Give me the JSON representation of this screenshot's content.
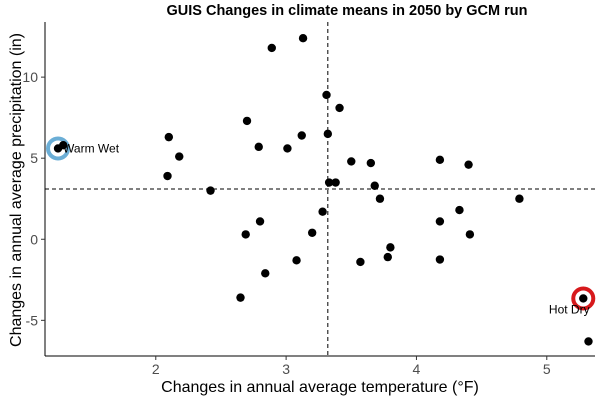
{
  "chart_data": {
    "type": "scatter",
    "title": "GUIS Changes in climate means in 2050 by GCM run",
    "xlabel": "Changes in annual average temperature (°F)",
    "ylabel": "Changes in annual average precipitation (in)",
    "xlim": [
      1.15,
      5.37
    ],
    "ylim": [
      -7.2,
      13.4
    ],
    "xticks": [
      2,
      3,
      4,
      5
    ],
    "yticks": [
      -5,
      0,
      5,
      10
    ],
    "grid": false,
    "reference_lines": {
      "x": 3.32,
      "y": 3.1
    },
    "points": [
      {
        "x": 1.25,
        "y": 5.6
      },
      {
        "x": 1.29,
        "y": 5.8
      },
      {
        "x": 2.1,
        "y": 6.3
      },
      {
        "x": 2.18,
        "y": 5.1
      },
      {
        "x": 2.09,
        "y": 3.9
      },
      {
        "x": 2.42,
        "y": 3.0
      },
      {
        "x": 2.7,
        "y": 7.3
      },
      {
        "x": 2.79,
        "y": 5.7
      },
      {
        "x": 2.89,
        "y": 11.8
      },
      {
        "x": 3.13,
        "y": 12.4
      },
      {
        "x": 3.01,
        "y": 5.6
      },
      {
        "x": 3.12,
        "y": 6.4
      },
      {
        "x": 3.31,
        "y": 8.9
      },
      {
        "x": 3.41,
        "y": 8.1
      },
      {
        "x": 3.32,
        "y": 6.5
      },
      {
        "x": 3.33,
        "y": 3.5
      },
      {
        "x": 3.38,
        "y": 3.5
      },
      {
        "x": 3.5,
        "y": 4.8
      },
      {
        "x": 3.65,
        "y": 4.7
      },
      {
        "x": 3.68,
        "y": 3.3
      },
      {
        "x": 3.72,
        "y": 2.5
      },
      {
        "x": 4.18,
        "y": 4.9
      },
      {
        "x": 4.4,
        "y": 4.6
      },
      {
        "x": 4.79,
        "y": 2.5
      },
      {
        "x": 4.33,
        "y": 1.8
      },
      {
        "x": 4.18,
        "y": 1.1
      },
      {
        "x": 4.41,
        "y": 0.3
      },
      {
        "x": 2.8,
        "y": 1.1
      },
      {
        "x": 2.69,
        "y": 0.3
      },
      {
        "x": 3.28,
        "y": 1.7
      },
      {
        "x": 3.2,
        "y": 0.4
      },
      {
        "x": 3.8,
        "y": -0.5
      },
      {
        "x": 3.78,
        "y": -1.1
      },
      {
        "x": 3.57,
        "y": -1.4
      },
      {
        "x": 3.08,
        "y": -1.3
      },
      {
        "x": 2.84,
        "y": -2.1
      },
      {
        "x": 2.65,
        "y": -3.6
      },
      {
        "x": 4.18,
        "y": -1.25
      },
      {
        "x": 5.28,
        "y": -3.65
      },
      {
        "x": 5.32,
        "y": -6.3
      }
    ],
    "annotations": [
      {
        "label": "Warm Wet",
        "x": 1.25,
        "y": 5.6,
        "ring_color": "#6baed6"
      },
      {
        "label": "Hot Dry",
        "x": 5.28,
        "y": -3.65,
        "ring_color": "#d7191c"
      }
    ],
    "point_color": "#000000"
  }
}
